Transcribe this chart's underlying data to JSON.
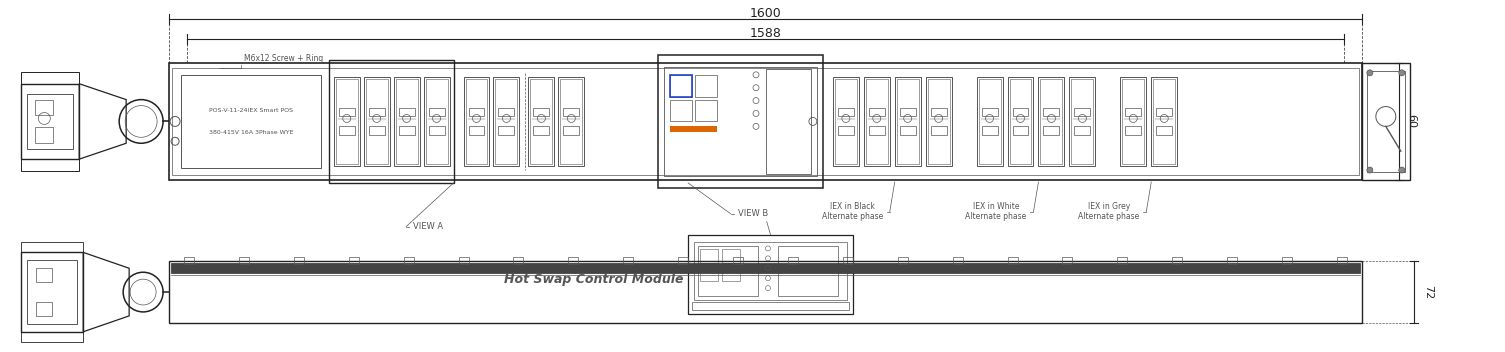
{
  "bg_color": "#ffffff",
  "lc": "#555555",
  "lc_dark": "#222222",
  "tc": "#333333",
  "fig_width": 15.05,
  "fig_height": 3.52,
  "dpi": 100,
  "dim_1600": "1600",
  "dim_1588": "1588",
  "dim_60": "60",
  "dim_72": "72",
  "label_view_a": "VIEW A",
  "label_view_b": "VIEW B",
  "label_hot_swap": "Hot Swap Control Module",
  "label_m6": "M6x12 Screw + Ring",
  "label_txt1": "POS-V-11-24IEX Smart POS",
  "label_txt2": "380-415V 16A 3Phase WYE",
  "label_iex_black": "IEX in Black\nAlternate phase",
  "label_iex_white": "IEX in White\nAlternate phase",
  "label_iex_grey": "IEX in Grey\nAlternate phase"
}
